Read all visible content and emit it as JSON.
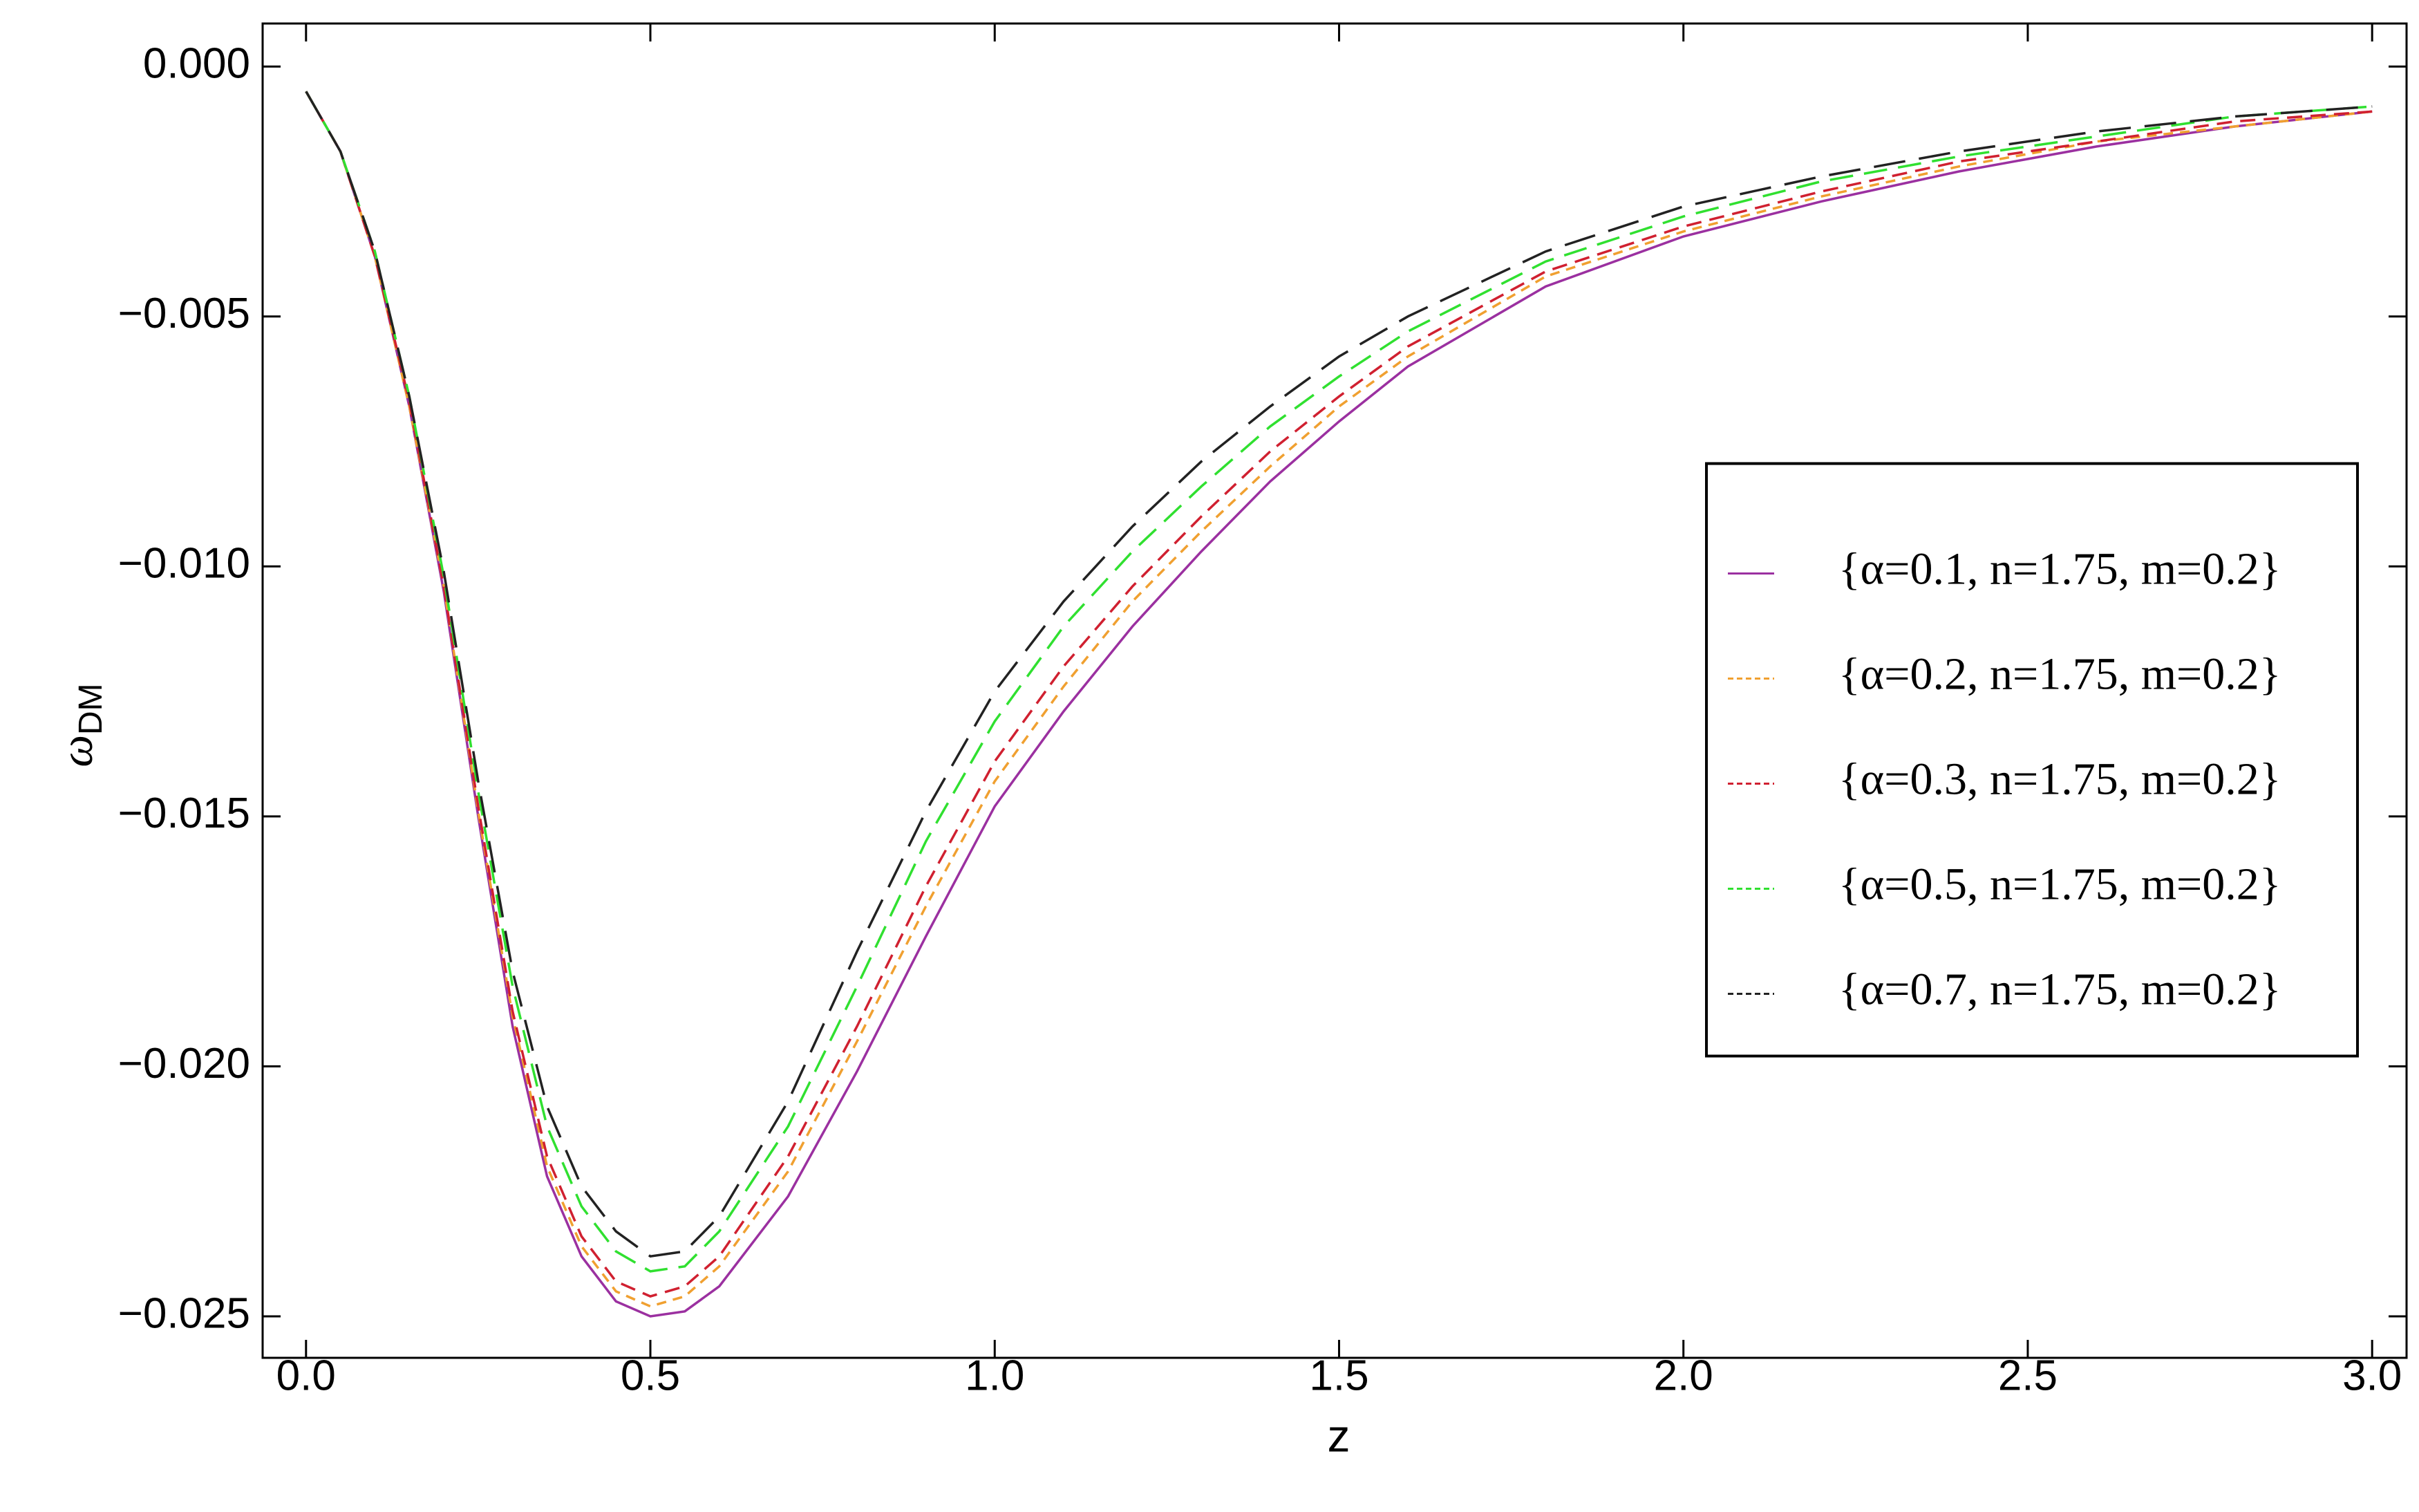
{
  "chart_data": {
    "type": "line",
    "xlabel": "z",
    "ylabel": "ω",
    "ylabel_sub": "DM",
    "x": [
      0,
      0.05,
      0.1,
      0.15,
      0.2,
      0.25,
      0.3,
      0.35,
      0.4,
      0.45,
      0.5,
      0.55,
      0.6,
      0.7,
      0.8,
      0.9,
      1.0,
      1.1,
      1.2,
      1.3,
      1.4,
      1.5,
      1.6,
      1.8,
      2.0,
      2.2,
      2.4,
      2.6,
      2.8,
      3.0
    ],
    "series": [
      {
        "name": "{α=0.1, n=1.75, m=0.2}",
        "color": "#9b30a0",
        "dash": "none",
        "values": [
          -0.0005,
          -0.0017,
          -0.0038,
          -0.0068,
          -0.0105,
          -0.015,
          -0.0192,
          -0.0222,
          -0.0238,
          -0.0247,
          -0.025,
          -0.0249,
          -0.0244,
          -0.0226,
          -0.0201,
          -0.0174,
          -0.0148,
          -0.0129,
          -0.0112,
          -0.0097,
          -0.0083,
          -0.0071,
          -0.006,
          -0.0044,
          -0.0034,
          -0.0027,
          -0.0021,
          -0.0016,
          -0.0012,
          -0.0009
        ]
      },
      {
        "name": "{α=0.2, n=1.75, m=0.2}",
        "color": "#f0a030",
        "dash": "14 10",
        "values": [
          -0.0005,
          -0.0017,
          -0.0038,
          -0.0068,
          -0.0104,
          -0.0149,
          -0.019,
          -0.022,
          -0.0236,
          -0.0245,
          -0.0248,
          -0.0246,
          -0.024,
          -0.0221,
          -0.0195,
          -0.0168,
          -0.0143,
          -0.0124,
          -0.0107,
          -0.0093,
          -0.008,
          -0.0068,
          -0.0058,
          -0.0042,
          -0.0033,
          -0.0026,
          -0.002,
          -0.0015,
          -0.0012,
          -0.0009
        ]
      },
      {
        "name": "{α=0.3, n=1.75, m=0.2}",
        "color": "#d02030",
        "dash": "22 12",
        "values": [
          -0.0005,
          -0.0017,
          -0.0038,
          -0.0067,
          -0.0104,
          -0.0148,
          -0.0189,
          -0.0218,
          -0.0234,
          -0.0243,
          -0.0246,
          -0.0244,
          -0.0238,
          -0.0218,
          -0.0192,
          -0.0164,
          -0.0139,
          -0.012,
          -0.0104,
          -0.009,
          -0.0077,
          -0.0066,
          -0.0056,
          -0.0041,
          -0.0032,
          -0.0025,
          -0.0019,
          -0.0015,
          -0.0011,
          -0.0009
        ]
      },
      {
        "name": "{α=0.5, n=1.75, m=0.2}",
        "color": "#30e030",
        "dash": "34 16",
        "values": [
          -0.0005,
          -0.0017,
          -0.0037,
          -0.0066,
          -0.0102,
          -0.0145,
          -0.0184,
          -0.0212,
          -0.0228,
          -0.0237,
          -0.0241,
          -0.024,
          -0.0233,
          -0.0212,
          -0.0184,
          -0.0155,
          -0.0131,
          -0.0112,
          -0.0097,
          -0.0084,
          -0.0072,
          -0.0062,
          -0.0053,
          -0.0039,
          -0.003,
          -0.0023,
          -0.0018,
          -0.0014,
          -0.001,
          -0.0008
        ]
      },
      {
        "name": "{α=0.7, n=1.75, m=0.2}",
        "color": "#222222",
        "dash": "46 20",
        "values": [
          -0.0005,
          -0.0017,
          -0.0037,
          -0.0066,
          -0.0101,
          -0.0143,
          -0.0181,
          -0.0208,
          -0.0224,
          -0.0233,
          -0.0238,
          -0.0237,
          -0.023,
          -0.0207,
          -0.0177,
          -0.0149,
          -0.0125,
          -0.0107,
          -0.0092,
          -0.0079,
          -0.0068,
          -0.0058,
          -0.005,
          -0.0037,
          -0.0028,
          -0.0022,
          -0.0017,
          -0.0013,
          -0.001,
          -0.0008
        ]
      }
    ],
    "xlim": [
      -0.063,
      3.05
    ],
    "ylim": [
      -0.02583,
      0.00086
    ],
    "xticks": [
      {
        "value": 0,
        "label": "0.0"
      },
      0.5,
      {
        "value": 1,
        "label": "1.0"
      },
      1.5,
      {
        "value": 2,
        "label": "2.0"
      },
      2.5,
      {
        "value": 3,
        "label": "3.0"
      }
    ],
    "yticks": [
      {
        "value": 0,
        "label": "0.000"
      },
      {
        "value": -0.005,
        "label": "−0.005"
      },
      {
        "value": -0.01,
        "label": "−0.010"
      },
      {
        "value": -0.015,
        "label": "−0.015"
      },
      {
        "value": -0.02,
        "label": "−0.020"
      },
      {
        "value": -0.025,
        "label": "−0.025"
      }
    ],
    "legend_position": "center right",
    "grid": false
  }
}
